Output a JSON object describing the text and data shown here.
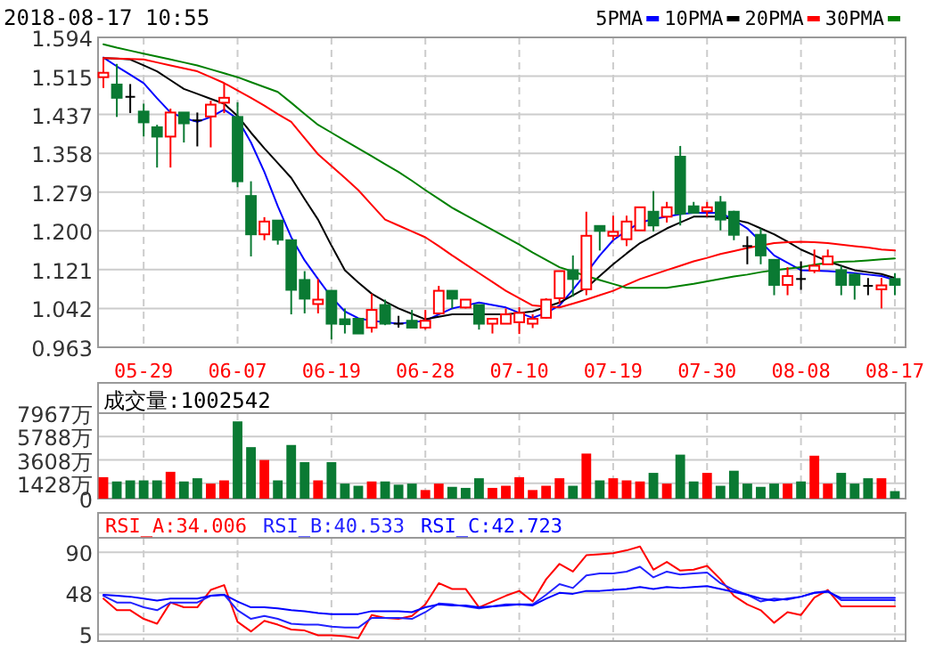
{
  "chart_data": [
    {
      "type": "candlestick",
      "title": "2018-08-17 10:55",
      "legend": "top right",
      "grid": true,
      "categories": [
        null,
        null,
        null,
        "05-29",
        null,
        null,
        null,
        null,
        null,
        null,
        "06-07",
        null,
        null,
        null,
        null,
        null,
        null,
        "06-19",
        null,
        null,
        null,
        null,
        null,
        null,
        "06-28",
        null,
        null,
        null,
        null,
        null,
        null,
        "07-10",
        null,
        null,
        null,
        null,
        null,
        null,
        "07-19",
        null,
        null,
        null,
        null,
        null,
        null,
        "07-30",
        null,
        null,
        null,
        null,
        null,
        null,
        "08-08",
        null,
        null,
        null,
        null,
        null,
        null,
        "08-17"
      ],
      "ohlc": [
        [
          1.513,
          1.553,
          1.491,
          1.522
        ],
        [
          1.498,
          1.54,
          1.432,
          1.471
        ],
        [
          1.473,
          1.499,
          1.44,
          1.473
        ],
        [
          1.443,
          1.459,
          1.392,
          1.421
        ],
        [
          1.411,
          1.416,
          1.329,
          1.392
        ],
        [
          1.392,
          1.449,
          1.329,
          1.441
        ],
        [
          1.441,
          1.441,
          1.38,
          1.419
        ],
        [
          1.425,
          1.441,
          1.372,
          1.425
        ],
        [
          1.433,
          1.465,
          1.37,
          1.457
        ],
        [
          1.461,
          1.501,
          1.44,
          1.471
        ],
        [
          1.432,
          1.462,
          1.289,
          1.301
        ],
        [
          1.271,
          1.301,
          1.148,
          1.193
        ],
        [
          1.193,
          1.228,
          1.181,
          1.219
        ],
        [
          1.221,
          1.221,
          1.172,
          1.182
        ],
        [
          1.181,
          1.181,
          1.03,
          1.08
        ],
        [
          1.1,
          1.118,
          1.032,
          1.062
        ],
        [
          1.051,
          1.102,
          1.032,
          1.06
        ],
        [
          1.078,
          1.078,
          0.979,
          1.011
        ],
        [
          1.02,
          1.042,
          0.991,
          1.01
        ],
        [
          1.021,
          1.021,
          0.991,
          0.991
        ],
        [
          1.003,
          1.072,
          0.993,
          1.039
        ],
        [
          1.049,
          1.06,
          1.008,
          1.011
        ],
        [
          1.011,
          1.027,
          1.003,
          1.011
        ],
        [
          1.017,
          1.039,
          1.003,
          1.003
        ],
        [
          1.003,
          1.039,
          0.999,
          1.017
        ],
        [
          1.032,
          1.088,
          1.03,
          1.078
        ],
        [
          1.078,
          1.078,
          1.042,
          1.062
        ],
        [
          1.044,
          1.06,
          1.042,
          1.06
        ],
        [
          1.049,
          1.049,
          0.999,
          1.011
        ],
        [
          1.011,
          1.021,
          0.991,
          1.021
        ],
        [
          1.011,
          1.042,
          1.011,
          1.03
        ],
        [
          1.014,
          1.045,
          0.99,
          1.033
        ],
        [
          1.011,
          1.03,
          1.002,
          1.021
        ],
        [
          1.023,
          1.063,
          1.021,
          1.06
        ],
        [
          1.063,
          1.118,
          1.051,
          1.118
        ],
        [
          1.12,
          1.15,
          1.066,
          1.102
        ],
        [
          1.081,
          1.239,
          1.069,
          1.19
        ],
        [
          1.21,
          1.21,
          1.16,
          1.2
        ],
        [
          1.19,
          1.231,
          1.181,
          1.198
        ],
        [
          1.183,
          1.231,
          1.169,
          1.219
        ],
        [
          1.201,
          1.248,
          1.201,
          1.248
        ],
        [
          1.239,
          1.281,
          1.199,
          1.211
        ],
        [
          1.229,
          1.259,
          1.217,
          1.248
        ],
        [
          1.351,
          1.373,
          1.211,
          1.235
        ],
        [
          1.25,
          1.259,
          1.235,
          1.237
        ],
        [
          1.24,
          1.259,
          1.229,
          1.248
        ],
        [
          1.258,
          1.271,
          1.201,
          1.223
        ],
        [
          1.239,
          1.241,
          1.181,
          1.192
        ],
        [
          1.169,
          1.189,
          1.132,
          1.169
        ],
        [
          1.192,
          1.205,
          1.132,
          1.15
        ],
        [
          1.141,
          1.141,
          1.069,
          1.09
        ],
        [
          1.09,
          1.126,
          1.069,
          1.108
        ],
        [
          1.102,
          1.138,
          1.08,
          1.102
        ],
        [
          1.119,
          1.162,
          1.114,
          1.129
        ],
        [
          1.132,
          1.162,
          1.132,
          1.148
        ],
        [
          1.12,
          1.129,
          1.069,
          1.09
        ],
        [
          1.111,
          1.114,
          1.06,
          1.09
        ],
        [
          1.088,
          1.104,
          1.069,
          1.088
        ],
        [
          1.081,
          1.104,
          1.042,
          1.089
        ],
        [
          1.102,
          1.114,
          1.069,
          1.09
        ]
      ],
      "series": [
        {
          "name": "5PMA",
          "type": "line",
          "color": "#0000ff",
          "values": [
            1.553,
            1.535,
            1.518,
            1.501,
            1.47,
            1.441,
            1.43,
            1.422,
            1.432,
            1.447,
            1.428,
            1.38,
            1.32,
            1.25,
            1.187,
            1.14,
            1.102,
            1.065,
            1.036,
            1.022,
            1.017,
            1.014,
            1.011,
            1.014,
            1.017,
            1.03,
            1.042,
            1.048,
            1.054,
            1.049,
            1.044,
            1.033,
            1.023,
            1.033,
            1.048,
            1.08,
            1.114,
            1.15,
            1.181,
            1.2,
            1.217,
            1.224,
            1.229,
            1.234,
            1.237,
            1.237,
            1.237,
            1.222,
            1.205,
            1.178,
            1.15,
            1.135,
            1.12,
            1.119,
            1.118,
            1.116,
            1.114,
            1.111,
            1.108,
            1.1
          ]
        },
        {
          "name": "10PMA",
          "type": "line",
          "color": "#000000",
          "values": [
            1.552,
            1.551,
            1.549,
            1.537,
            1.525,
            1.507,
            1.489,
            1.479,
            1.469,
            1.459,
            1.434,
            1.4,
            1.368,
            1.338,
            1.308,
            1.265,
            1.223,
            1.17,
            1.12,
            1.095,
            1.072,
            1.056,
            1.042,
            1.031,
            1.02,
            1.025,
            1.03,
            1.03,
            1.03,
            1.03,
            1.03,
            1.033,
            1.036,
            1.045,
            1.054,
            1.069,
            1.084,
            1.108,
            1.132,
            1.154,
            1.175,
            1.19,
            1.205,
            1.217,
            1.229,
            1.229,
            1.229,
            1.223,
            1.217,
            1.205,
            1.193,
            1.178,
            1.162,
            1.15,
            1.138,
            1.129,
            1.12,
            1.116,
            1.112,
            1.104
          ]
        },
        {
          "name": "20PMA",
          "type": "line",
          "color": "#ff0000",
          "values": [
            1.552,
            1.551,
            1.55,
            1.549,
            1.543,
            1.537,
            1.531,
            1.525,
            1.513,
            1.501,
            1.486,
            1.471,
            1.455,
            1.438,
            1.422,
            1.389,
            1.356,
            1.332,
            1.308,
            1.283,
            1.253,
            1.223,
            1.211,
            1.199,
            1.187,
            1.169,
            1.15,
            1.132,
            1.114,
            1.096,
            1.078,
            1.063,
            1.048,
            1.046,
            1.044,
            1.052,
            1.06,
            1.069,
            1.078,
            1.09,
            1.102,
            1.111,
            1.12,
            1.129,
            1.138,
            1.145,
            1.153,
            1.159,
            1.165,
            1.17,
            1.175,
            1.177,
            1.178,
            1.177,
            1.175,
            1.172,
            1.169,
            1.166,
            1.162,
            1.16
          ]
        },
        {
          "name": "30PMA",
          "type": "line",
          "color": "#008000",
          "values": [
            1.58,
            1.573,
            1.567,
            1.561,
            1.555,
            1.549,
            1.543,
            1.537,
            1.529,
            1.521,
            1.513,
            1.503,
            1.493,
            1.483,
            1.461,
            1.438,
            1.416,
            1.4,
            1.384,
            1.368,
            1.352,
            1.336,
            1.32,
            1.302,
            1.283,
            1.265,
            1.247,
            1.232,
            1.217,
            1.202,
            1.187,
            1.172,
            1.156,
            1.141,
            1.126,
            1.117,
            1.108,
            1.1,
            1.092,
            1.084,
            1.084,
            1.084,
            1.084,
            1.088,
            1.092,
            1.097,
            1.102,
            1.107,
            1.111,
            1.116,
            1.12,
            1.123,
            1.126,
            1.131,
            1.135,
            1.137,
            1.138,
            1.14,
            1.142,
            1.144
          ]
        }
      ],
      "ylim": [
        0.963,
        1.594
      ],
      "yticks": [
        {
          "value": 0.963,
          "label": "0.963"
        },
        1.042,
        1.121,
        {
          "value": 1.2,
          "label": "1.200"
        },
        1.279,
        1.358,
        1.437,
        1.515,
        1.594
      ]
    },
    {
      "type": "bar",
      "title": "成交量:1002542",
      "grid": true,
      "tick_labels": "y",
      "categories": [
        null,
        null,
        null,
        null,
        null,
        null,
        null,
        null,
        null,
        null,
        null,
        null,
        null,
        null,
        null,
        null,
        null,
        null,
        null,
        null,
        null,
        null,
        null,
        null,
        null,
        null,
        null,
        null,
        null,
        null,
        null,
        null,
        null,
        null,
        null,
        null,
        null,
        null,
        null,
        null,
        null,
        null,
        null,
        null,
        null,
        null,
        null,
        null,
        null,
        null,
        null,
        null,
        null,
        null,
        null,
        null,
        null,
        null,
        null,
        null
      ],
      "values": [
        2000,
        1600,
        1700,
        1700,
        1700,
        2500,
        1600,
        1900,
        1400,
        1700,
        7200,
        4800,
        3600,
        1700,
        5000,
        3400,
        1700,
        3400,
        1400,
        1200,
        1600,
        1600,
        1300,
        1400,
        800,
        1400,
        1100,
        1000,
        1900,
        1000,
        1200,
        2000,
        800,
        1200,
        1900,
        1200,
        4200,
        1700,
        1900,
        1700,
        1600,
        2400,
        1400,
        4100,
        1600,
        2400,
        1200,
        2600,
        1400,
        1100,
        1400,
        1400,
        1600,
        4000,
        1400,
        2400,
        1400,
        1900,
        1900,
        700
      ],
      "colors": [
        "#ff0000",
        "#0a7a33",
        "#0a7a33",
        "#0a7a33",
        "#0a7a33",
        "#ff0000",
        "#0a7a33",
        "#0a7a33",
        "#ff0000",
        "#ff0000",
        "#0a7a33",
        "#0a7a33",
        "#ff0000",
        "#0a7a33",
        "#0a7a33",
        "#0a7a33",
        "#ff0000",
        "#0a7a33",
        "#0a7a33",
        "#0a7a33",
        "#ff0000",
        "#0a7a33",
        "#0a7a33",
        "#0a7a33",
        "#ff0000",
        "#ff0000",
        "#0a7a33",
        "#0a7a33",
        "#0a7a33",
        "#ff0000",
        "#ff0000",
        "#ff0000",
        "#ff0000",
        "#ff0000",
        "#ff0000",
        "#0a7a33",
        "#ff0000",
        "#0a7a33",
        "#ff0000",
        "#ff0000",
        "#ff0000",
        "#0a7a33",
        "#ff0000",
        "#0a7a33",
        "#0a7a33",
        "#ff0000",
        "#0a7a33",
        "#0a7a33",
        "#0a7a33",
        "#0a7a33",
        "#0a7a33",
        "#ff0000",
        "#0a7a33",
        "#ff0000",
        "#ff0000",
        "#0a7a33",
        "#0a7a33",
        "#0a7a33",
        "#ff0000",
        "#0a7a33"
      ],
      "ylim": [
        0,
        7967
      ],
      "yticks": [
        0,
        {
          "value": 1428,
          "label": "1428万"
        },
        {
          "value": 3608,
          "label": "3608万"
        },
        {
          "value": 5788,
          "label": "5788万"
        },
        {
          "value": 7967,
          "label": "7967万"
        }
      ]
    },
    {
      "type": "line",
      "legend": "top left",
      "grid": true,
      "tick_labels": "y",
      "categories": [
        null,
        null,
        null,
        null,
        null,
        null,
        null,
        null,
        null,
        null,
        null,
        null,
        null,
        null,
        null,
        null,
        null,
        null,
        null,
        null,
        null,
        null,
        null,
        null,
        null,
        null,
        null,
        null,
        null,
        null,
        null,
        null,
        null,
        null,
        null,
        null,
        null,
        null,
        null,
        null,
        null,
        null,
        null,
        null,
        null,
        null,
        null,
        null,
        null,
        null,
        null,
        null,
        null,
        null,
        null,
        null,
        null,
        null,
        null,
        null
      ],
      "series": [
        {
          "name": "RSI_A:34.006",
          "color": "#ff0000",
          "values": [
            42,
            30,
            30,
            21,
            16,
            38,
            33,
            33,
            51,
            56,
            18,
            8,
            19,
            15,
            10,
            9,
            4,
            4,
            3,
            1,
            25,
            22,
            21,
            24,
            36,
            58,
            52,
            52,
            33,
            39,
            45,
            50,
            39,
            62,
            78,
            70,
            87,
            88,
            89,
            92,
            96,
            72,
            80,
            71,
            72,
            76,
            62,
            45,
            36,
            30,
            17,
            28,
            25,
            43,
            51,
            34,
            34,
            34,
            34,
            34.006
          ]
        },
        {
          "name": "RSI_B:40.533",
          "color": "#2222ff",
          "values": [
            45,
            38,
            38,
            33,
            30,
            38,
            38,
            38,
            45,
            46,
            30,
            21,
            24,
            21,
            16,
            15,
            15,
            13,
            12,
            12,
            22,
            22,
            22,
            21,
            28,
            37,
            36,
            34,
            32,
            34,
            36,
            36,
            36,
            46,
            57,
            53,
            66,
            68,
            68,
            70,
            75,
            64,
            70,
            67,
            68,
            69,
            58,
            51,
            46,
            39,
            42,
            41,
            44,
            48,
            50,
            40.5,
            40.5,
            40.5,
            40.5,
            40.533
          ]
        },
        {
          "name": "RSI_C:42.723",
          "color": "#0000ff",
          "values": [
            46,
            45,
            44,
            42,
            40,
            42,
            42,
            42,
            45,
            46,
            39,
            33,
            33,
            32,
            30,
            29,
            27,
            26,
            26,
            26,
            29,
            29,
            29,
            28,
            33,
            36,
            35,
            35,
            33,
            34,
            35,
            36,
            35,
            42,
            48,
            47,
            50,
            50,
            51,
            52,
            54,
            52,
            54,
            53,
            54,
            55,
            52,
            49,
            46,
            42,
            40,
            42,
            44,
            48,
            49,
            42.7,
            42.7,
            42.7,
            42.7,
            42.723
          ]
        }
      ],
      "ylim": [
        -2,
        105
      ],
      "yticks": [
        5,
        48,
        90
      ]
    }
  ]
}
